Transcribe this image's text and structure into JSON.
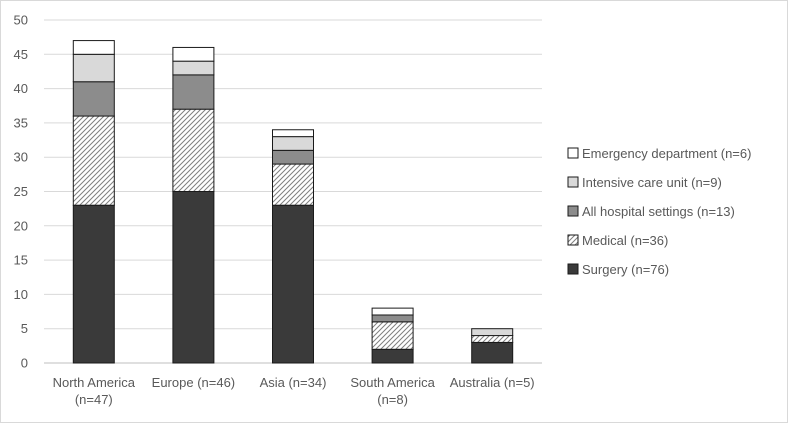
{
  "chart_data": {
    "type": "bar",
    "stacked": true,
    "categories": [
      [
        "North America",
        "(n=47)"
      ],
      [
        "Europe (n=46)"
      ],
      [
        "Asia (n=34)"
      ],
      [
        "South America",
        "(n=8)"
      ],
      [
        "Australia (n=5)"
      ]
    ],
    "series": [
      {
        "name": "Surgery (n=76)",
        "values": [
          23,
          25,
          23,
          2,
          3
        ],
        "fill": "#3a3a3a",
        "pattern": "solid"
      },
      {
        "name": "Medical (n=36)",
        "values": [
          13,
          12,
          6,
          4,
          1
        ],
        "fill": "#ffffff",
        "pattern": "hatch"
      },
      {
        "name": "All hospital settings (n=13)",
        "values": [
          5,
          5,
          2,
          1,
          0
        ],
        "fill": "#8c8c8c",
        "pattern": "solid"
      },
      {
        "name": "Intensive care unit (n=9)",
        "values": [
          4,
          2,
          2,
          0,
          1
        ],
        "fill": "#d9d9d9",
        "pattern": "solid"
      },
      {
        "name": "Emergency department (n=6)",
        "values": [
          2,
          2,
          1,
          1,
          0
        ],
        "fill": "#ffffff",
        "pattern": "solid"
      }
    ],
    "legend_order": [
      4,
      3,
      2,
      1,
      0
    ],
    "ylim": [
      0,
      50
    ],
    "yticks": [
      0,
      5,
      10,
      15,
      20,
      25,
      30,
      35,
      40,
      45,
      50
    ],
    "grid": true,
    "legend_position": "right",
    "title": "",
    "xlabel": "",
    "ylabel": ""
  }
}
